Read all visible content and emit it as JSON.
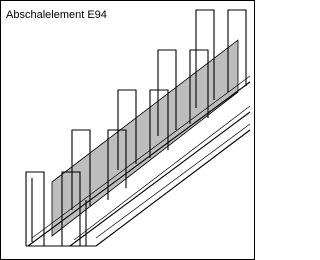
{
  "title": "Abschalelement E94"
}
